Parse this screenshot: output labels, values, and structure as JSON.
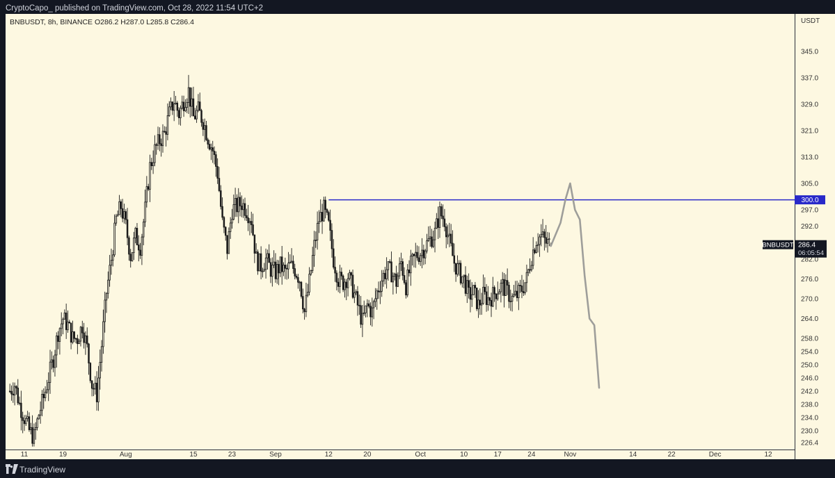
{
  "header": {
    "publisher": "CryptoCapo_ published on TradingView.com, Oct 28, 2022 11:54 UTC+2"
  },
  "legend": {
    "text": "BNBUSDT, 8h, BINANCE  O286.2  H287.0  L285.8  C286.4"
  },
  "footer": {
    "brand": "TradingView"
  },
  "colors": {
    "background": "#fdf8e1",
    "candle": "#1b1b1b",
    "level_line": "#2829c9",
    "projection": "#9e9e9a",
    "axis_text": "#333333"
  },
  "chart_data": {
    "type": "candlestick",
    "symbol": "BNBUSDT",
    "interval": "8h",
    "exchange": "BINANCE",
    "last_bar": {
      "open": 286.2,
      "high": 287.0,
      "low": 285.8,
      "close": 286.4
    },
    "yaxis": {
      "unit": "USDT",
      "ticks": [
        345.0,
        337.0,
        329.0,
        321.0,
        313.0,
        305.0,
        297.0,
        292.0,
        282.0,
        276.0,
        270.0,
        264.0,
        258.0,
        254.0,
        250.0,
        246.0,
        242.0,
        238.0,
        234.0,
        230.0,
        226.4
      ],
      "tick_labels": [
        "345.0",
        "337.0",
        "329.0",
        "321.0",
        "313.0",
        "305.0",
        "297.0",
        "292.0",
        "282.0",
        "276.0",
        "270.0",
        "264.0",
        "258.0",
        "254.0",
        "250.0",
        "246.0",
        "242.0",
        "238.0",
        "234.0",
        "230.0",
        "226.4"
      ]
    },
    "xaxis": {
      "labels": [
        {
          "label": "11",
          "date": "2022-07-11"
        },
        {
          "label": "19",
          "date": "2022-07-19"
        },
        {
          "label": "Aug",
          "date": "2022-08-01"
        },
        {
          "label": "15",
          "date": "2022-08-15"
        },
        {
          "label": "23",
          "date": "2022-08-23"
        },
        {
          "label": "Sep",
          "date": "2022-09-01"
        },
        {
          "label": "12",
          "date": "2022-09-12"
        },
        {
          "label": "20",
          "date": "2022-09-20"
        },
        {
          "label": "Oct",
          "date": "2022-10-01"
        },
        {
          "label": "10",
          "date": "2022-10-10"
        },
        {
          "label": "17",
          "date": "2022-10-17"
        },
        {
          "label": "24",
          "date": "2022-10-24"
        },
        {
          "label": "Nov",
          "date": "2022-11-01"
        },
        {
          "label": "14",
          "date": "2022-11-14"
        },
        {
          "label": "22",
          "date": "2022-11-22"
        },
        {
          "label": "Dec",
          "date": "2022-12-01"
        },
        {
          "label": "12",
          "date": "2022-12-12"
        }
      ]
    },
    "ohlc_path": [
      [
        "2022-07-08",
        242
      ],
      [
        "2022-07-09",
        244
      ],
      [
        "2022-07-10",
        238
      ],
      [
        "2022-07-11",
        234
      ],
      [
        "2022-07-12",
        230
      ],
      [
        "2022-07-13",
        228
      ],
      [
        "2022-07-14",
        235
      ],
      [
        "2022-07-15",
        240
      ],
      [
        "2022-07-16",
        246
      ],
      [
        "2022-07-17",
        252
      ],
      [
        "2022-07-18",
        260
      ],
      [
        "2022-07-19",
        264
      ],
      [
        "2022-07-20",
        262
      ],
      [
        "2022-07-21",
        258
      ],
      [
        "2022-07-22",
        258
      ],
      [
        "2022-07-23",
        262
      ],
      [
        "2022-07-24",
        255
      ],
      [
        "2022-07-25",
        244
      ],
      [
        "2022-07-26",
        241
      ],
      [
        "2022-07-27",
        256
      ],
      [
        "2022-07-28",
        272
      ],
      [
        "2022-07-29",
        282
      ],
      [
        "2022-07-30",
        294
      ],
      [
        "2022-07-31",
        298
      ],
      [
        "2022-08-01",
        292
      ],
      [
        "2022-08-02",
        283
      ],
      [
        "2022-08-03",
        289
      ],
      [
        "2022-08-04",
        286
      ],
      [
        "2022-08-05",
        297
      ],
      [
        "2022-08-06",
        310
      ],
      [
        "2022-08-07",
        315
      ],
      [
        "2022-08-08",
        318
      ],
      [
        "2022-08-09",
        320
      ],
      [
        "2022-08-10",
        326
      ],
      [
        "2022-08-11",
        330
      ],
      [
        "2022-08-12",
        326
      ],
      [
        "2022-08-13",
        330
      ],
      [
        "2022-08-14",
        333
      ],
      [
        "2022-08-15",
        325
      ],
      [
        "2022-08-16",
        327
      ],
      [
        "2022-08-17",
        324
      ],
      [
        "2022-08-18",
        319
      ],
      [
        "2022-08-19",
        315
      ],
      [
        "2022-08-20",
        308
      ],
      [
        "2022-08-21",
        293
      ],
      [
        "2022-08-22",
        285
      ],
      [
        "2022-08-23",
        297
      ],
      [
        "2022-08-24",
        298
      ],
      [
        "2022-08-25",
        299
      ],
      [
        "2022-08-26",
        297
      ],
      [
        "2022-08-27",
        294
      ],
      [
        "2022-08-28",
        282
      ],
      [
        "2022-08-29",
        280
      ],
      [
        "2022-08-30",
        282
      ],
      [
        "2022-08-31",
        279
      ],
      [
        "2022-09-01",
        278
      ],
      [
        "2022-09-02",
        280
      ],
      [
        "2022-09-03",
        278
      ],
      [
        "2022-09-04",
        280
      ],
      [
        "2022-09-05",
        279
      ],
      [
        "2022-09-06",
        276
      ],
      [
        "2022-09-07",
        266
      ],
      [
        "2022-09-08",
        275
      ],
      [
        "2022-09-09",
        286
      ],
      [
        "2022-09-10",
        294
      ],
      [
        "2022-09-11",
        297
      ],
      [
        "2022-09-12",
        292
      ],
      [
        "2022-09-13",
        282
      ],
      [
        "2022-09-14",
        276
      ],
      [
        "2022-09-15",
        275
      ],
      [
        "2022-09-16",
        277
      ],
      [
        "2022-09-17",
        273
      ],
      [
        "2022-09-18",
        268
      ],
      [
        "2022-09-19",
        263
      ],
      [
        "2022-09-20",
        268
      ],
      [
        "2022-09-21",
        266
      ],
      [
        "2022-09-22",
        272
      ],
      [
        "2022-09-23",
        276
      ],
      [
        "2022-09-24",
        279
      ],
      [
        "2022-09-25",
        278
      ],
      [
        "2022-09-26",
        275
      ],
      [
        "2022-09-27",
        281
      ],
      [
        "2022-09-28",
        274
      ],
      [
        "2022-09-29",
        280
      ],
      [
        "2022-09-30",
        283
      ],
      [
        "2022-10-01",
        284
      ],
      [
        "2022-10-02",
        286
      ],
      [
        "2022-10-03",
        288
      ],
      [
        "2022-10-04",
        290
      ],
      [
        "2022-10-05",
        296
      ],
      [
        "2022-10-06",
        294
      ],
      [
        "2022-10-07",
        287
      ],
      [
        "2022-10-08",
        281
      ],
      [
        "2022-10-09",
        278
      ],
      [
        "2022-10-10",
        276
      ],
      [
        "2022-10-11",
        271
      ],
      [
        "2022-10-12",
        272
      ],
      [
        "2022-10-13",
        268
      ],
      [
        "2022-10-14",
        271
      ],
      [
        "2022-10-15",
        270
      ],
      [
        "2022-10-16",
        271
      ],
      [
        "2022-10-17",
        273
      ],
      [
        "2022-10-18",
        274
      ],
      [
        "2022-10-19",
        272
      ],
      [
        "2022-10-20",
        270
      ],
      [
        "2022-10-21",
        271
      ],
      [
        "2022-10-22",
        273
      ],
      [
        "2022-10-23",
        276
      ],
      [
        "2022-10-24",
        283
      ],
      [
        "2022-10-25",
        288
      ],
      [
        "2022-10-26",
        289
      ],
      [
        "2022-10-27",
        287
      ],
      [
        "2022-10-28",
        286.4
      ]
    ],
    "horizontal_level": {
      "value": 300.0,
      "label": "300.0",
      "start": "2022-09-12"
    },
    "last_price": {
      "symbol": "BNBUSDT",
      "value": 286.4,
      "label": "286.4",
      "countdown": "06:05:54"
    },
    "projection_path": [
      [
        "2022-10-28",
        286
      ],
      [
        "2022-10-30",
        293
      ],
      [
        "2022-10-31",
        300
      ],
      [
        "2022-11-01",
        305
      ],
      [
        "2022-11-02",
        297
      ],
      [
        "2022-11-03",
        294
      ],
      [
        "2022-11-04",
        277
      ],
      [
        "2022-11-05",
        264
      ],
      [
        "2022-11-06",
        262
      ],
      [
        "2022-11-07",
        243
      ]
    ]
  }
}
